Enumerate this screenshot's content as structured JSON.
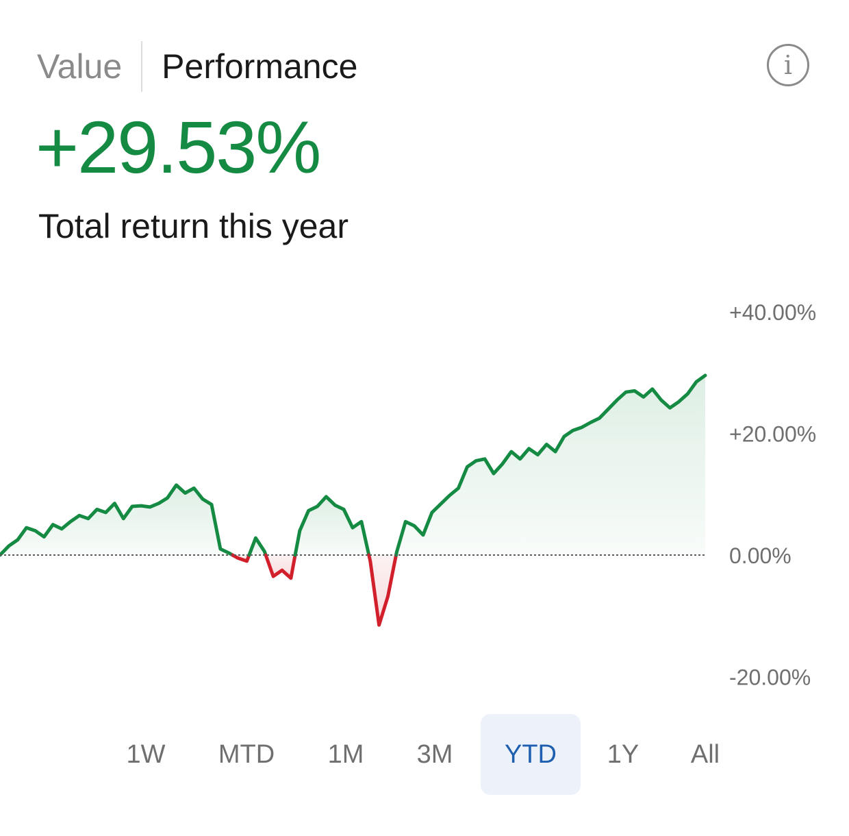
{
  "header": {
    "tabs": [
      {
        "label": "Value",
        "active": false
      },
      {
        "label": "Performance",
        "active": true
      }
    ],
    "info_icon": "info-circle-icon"
  },
  "summary": {
    "total_return": "+29.53%",
    "caption": "Total return this year"
  },
  "colors": {
    "positive": "#148a43",
    "negative": "#d21f2c",
    "accent": "#1f5fb0",
    "active_tab_bg": "#edf1f9"
  },
  "chart_data": {
    "type": "area",
    "ylim": [
      -30,
      40
    ],
    "y_ticks": [
      {
        "value": 40,
        "label": "+40.00%"
      },
      {
        "value": 20,
        "label": "+20.00%"
      },
      {
        "value": 0,
        "label": "0.00%"
      },
      {
        "value": -20,
        "label": "-20.00%"
      }
    ],
    "baseline": 0,
    "values": [
      0.0,
      1.5,
      2.5,
      4.5,
      4.0,
      3.0,
      5.0,
      4.3,
      5.5,
      6.5,
      6.0,
      7.5,
      7.0,
      8.5,
      6.0,
      8.0,
      8.1,
      7.9,
      8.5,
      9.4,
      11.5,
      10.2,
      11.0,
      9.2,
      8.3,
      1.0,
      0.3,
      -0.5,
      -1.0,
      2.8,
      0.6,
      -3.5,
      -2.5,
      -3.8,
      4.0,
      7.3,
      8.0,
      9.6,
      8.2,
      7.5,
      4.5,
      5.5,
      -1.0,
      -11.5,
      -6.8,
      0.5,
      5.5,
      4.8,
      3.3,
      7.0,
      8.4,
      9.8,
      11.0,
      14.5,
      15.5,
      15.8,
      13.4,
      15.0,
      17.0,
      15.8,
      17.5,
      16.5,
      18.2,
      17.0,
      19.5,
      20.5,
      21.0,
      21.8,
      22.5,
      24.0,
      25.5,
      26.8,
      27.0,
      26.0,
      27.3,
      25.5,
      24.2,
      25.2,
      26.5,
      28.5,
      29.53
    ]
  },
  "range_selector": {
    "options": [
      {
        "label": "1W",
        "active": false
      },
      {
        "label": "MTD",
        "active": false
      },
      {
        "label": "1M",
        "active": false
      },
      {
        "label": "3M",
        "active": false
      },
      {
        "label": "YTD",
        "active": true
      },
      {
        "label": "1Y",
        "active": false
      },
      {
        "label": "All",
        "active": false
      }
    ]
  }
}
